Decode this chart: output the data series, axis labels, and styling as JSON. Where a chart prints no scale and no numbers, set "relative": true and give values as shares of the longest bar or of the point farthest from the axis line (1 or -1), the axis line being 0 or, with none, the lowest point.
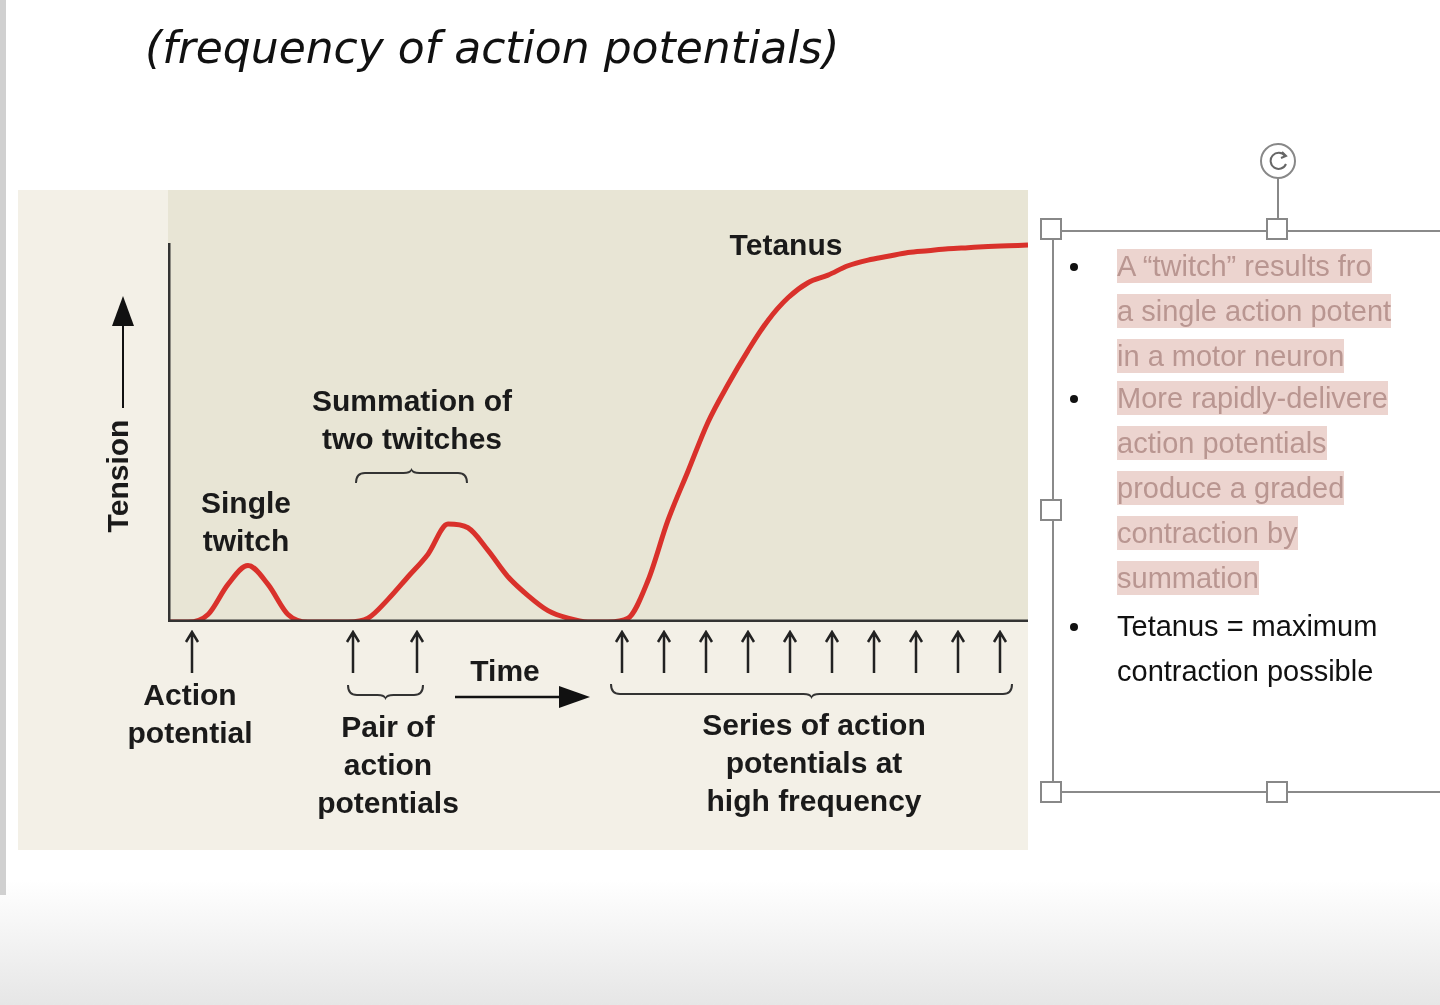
{
  "chart_data": {
    "type": "line",
    "title": "(frequency of action potentials)",
    "xlabel": "Time",
    "ylabel": "Tension",
    "relative": true,
    "marker": "none",
    "categories": [
      null,
      null,
      null,
      null,
      null,
      null,
      null,
      null,
      null,
      null,
      null,
      null,
      null,
      null,
      null,
      null,
      null,
      null,
      null,
      null,
      null,
      null,
      null,
      null,
      null,
      null,
      null,
      null,
      null,
      null,
      null,
      null,
      null,
      null,
      null,
      null,
      null,
      null,
      null,
      null,
      null,
      null,
      null,
      null
    ],
    "series": [
      {
        "color": "#d9312b",
        "values": [
          0,
          0,
          0.02,
          0.1,
          0.15,
          0.1,
          0.02,
          0,
          0,
          0,
          0.01,
          0.06,
          0.12,
          0.18,
          0.26,
          0.25,
          0.19,
          0.12,
          0.07,
          0.03,
          0.01,
          0,
          0,
          0.01,
          0.11,
          0.27,
          0.4,
          0.53,
          0.63,
          0.72,
          0.8,
          0.86,
          0.9,
          0.92,
          0.945,
          0.96,
          0.97,
          0.98,
          0.985,
          0.99,
          0.993,
          0.996,
          0.998,
          1
        ]
      }
    ],
    "annotations": [
      "Single\ntwitch",
      "Summation of\ntwo twitches",
      "Tetanus",
      "Action\npotential",
      "Pair of\naction\npotentials",
      "Series of action\npotentials at\nhigh frequency",
      "A “twitch” results fro\na single action potent\nin a motor neuron",
      "More rapidly-delivere\naction potentials\nproduce a graded\ncontraction by\nsummation",
      "Tetanus = maximum\ncontraction possible"
    ]
  }
}
